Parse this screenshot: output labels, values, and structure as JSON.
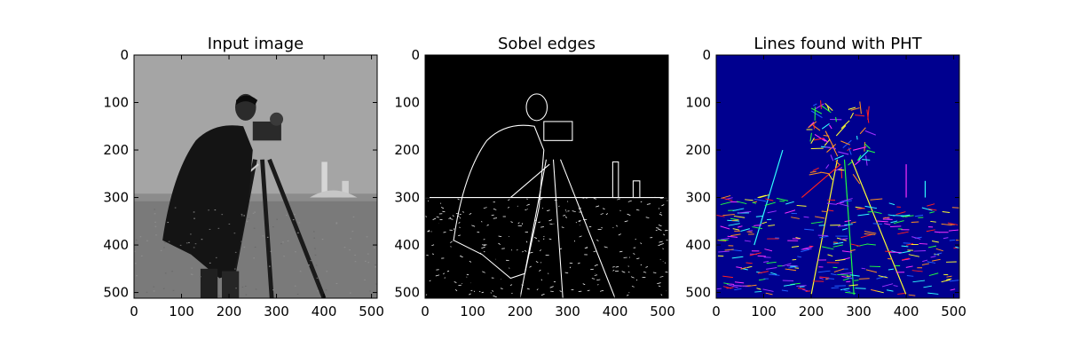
{
  "panels": [
    {
      "title": "Input image",
      "kind": "photo",
      "xticks": [
        "0",
        "100",
        "200",
        "300",
        "400",
        "500"
      ],
      "yticks": [
        "0",
        "100",
        "200",
        "300",
        "400",
        "500"
      ]
    },
    {
      "title": "Sobel edges",
      "kind": "edges",
      "xticks": [
        "0",
        "100",
        "200",
        "300",
        "400",
        "500"
      ],
      "yticks": [
        "0",
        "100",
        "200",
        "300",
        "400",
        "500"
      ]
    },
    {
      "title": "Lines found with PHT",
      "kind": "lines",
      "xticks": [
        "0",
        "100",
        "200",
        "300",
        "400",
        "500"
      ],
      "yticks": [
        "0",
        "100",
        "200",
        "300",
        "400",
        "500"
      ]
    }
  ],
  "image_extent": [
    0,
    512
  ],
  "colors": {
    "photo_sky": "#a5a5a5",
    "photo_ground": "#7a7a7a",
    "edges_background": "#000000",
    "edges_stroke": "#ffffff",
    "lines_background": "#00008f",
    "line_palette": [
      "#ff2020",
      "#20ff40",
      "#2060ff",
      "#ffff30",
      "#30ffff",
      "#ff30ff",
      "#ff9020",
      "#a030ff"
    ]
  }
}
